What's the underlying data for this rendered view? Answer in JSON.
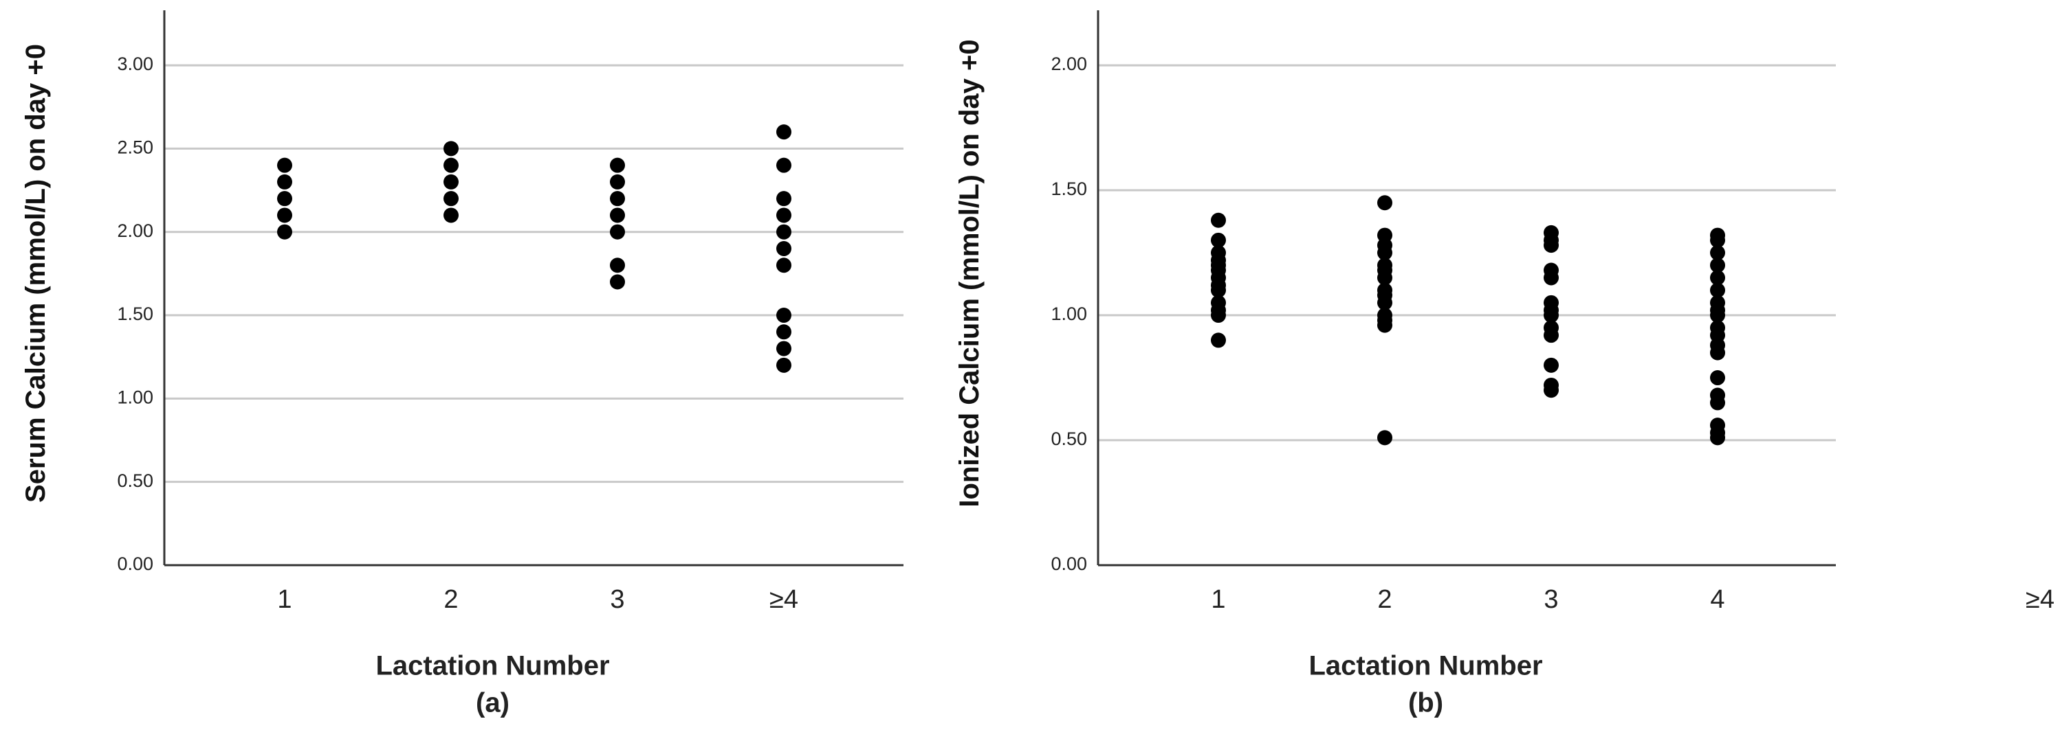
{
  "chart_data": [
    {
      "type": "strip",
      "subtitle": "(a)",
      "y_label": "Serum Calcium (mmol/L) on day +0",
      "x_label": "Lactation Number",
      "categories": [
        "1",
        "2",
        "3",
        "≥4"
      ],
      "values": [
        [
          2.0,
          2.1,
          2.2,
          2.3,
          2.4
        ],
        [
          2.1,
          2.2,
          2.3,
          2.4,
          2.5
        ],
        [
          1.7,
          1.8,
          2.0,
          2.1,
          2.2,
          2.3,
          2.4
        ],
        [
          1.2,
          1.3,
          1.4,
          1.5,
          1.8,
          1.9,
          2.0,
          2.1,
          2.2,
          2.4,
          2.6
        ]
      ],
      "color": "#000000",
      "ylim": [
        0,
        3.33
      ],
      "yticks": [
        {
          "value": 0,
          "label": "0.00"
        },
        {
          "value": 0.5,
          "label": "0.50"
        },
        {
          "value": 1,
          "label": "1.00"
        },
        {
          "value": 1.5,
          "label": "1.50"
        },
        {
          "value": 2,
          "label": "2.00"
        },
        {
          "value": 2.5,
          "label": "2.50"
        },
        {
          "value": 3,
          "label": "3.00"
        }
      ],
      "grid": true
    },
    {
      "type": "strip",
      "subtitle": "(b)",
      "y_label": "Ionized Calcium (mmol/L) on day +0",
      "x_label": "Lactation Number",
      "categories": [
        "1",
        "2",
        "3",
        "4"
      ],
      "values": [
        [
          0.9,
          1.0,
          1.02,
          1.05,
          1.1,
          1.12,
          1.15,
          1.18,
          1.2,
          1.22,
          1.25,
          1.3,
          1.38
        ],
        [
          0.51,
          0.96,
          0.98,
          1.0,
          1.05,
          1.08,
          1.1,
          1.15,
          1.18,
          1.2,
          1.25,
          1.28,
          1.32,
          1.45
        ],
        [
          0.7,
          0.72,
          0.8,
          0.92,
          0.95,
          1.0,
          1.02,
          1.05,
          1.15,
          1.18,
          1.28,
          1.3,
          1.33
        ],
        [
          0.51,
          0.53,
          0.56,
          0.65,
          0.68,
          0.75,
          0.85,
          0.88,
          0.92,
          0.95,
          1.0,
          1.02,
          1.05,
          1.1,
          1.15,
          1.2,
          1.25,
          1.3,
          1.32
        ]
      ],
      "color": "#000000",
      "ylim": [
        0,
        2.22
      ],
      "yticks": [
        {
          "value": 0,
          "label": "0.00"
        },
        {
          "value": 0.5,
          "label": "0.50"
        },
        {
          "value": 1,
          "label": "1.00"
        },
        {
          "value": 1.5,
          "label": "1.50"
        },
        {
          "value": 2,
          "label": "2.00"
        }
      ],
      "grid": true,
      "annotation": "≥4"
    }
  ]
}
